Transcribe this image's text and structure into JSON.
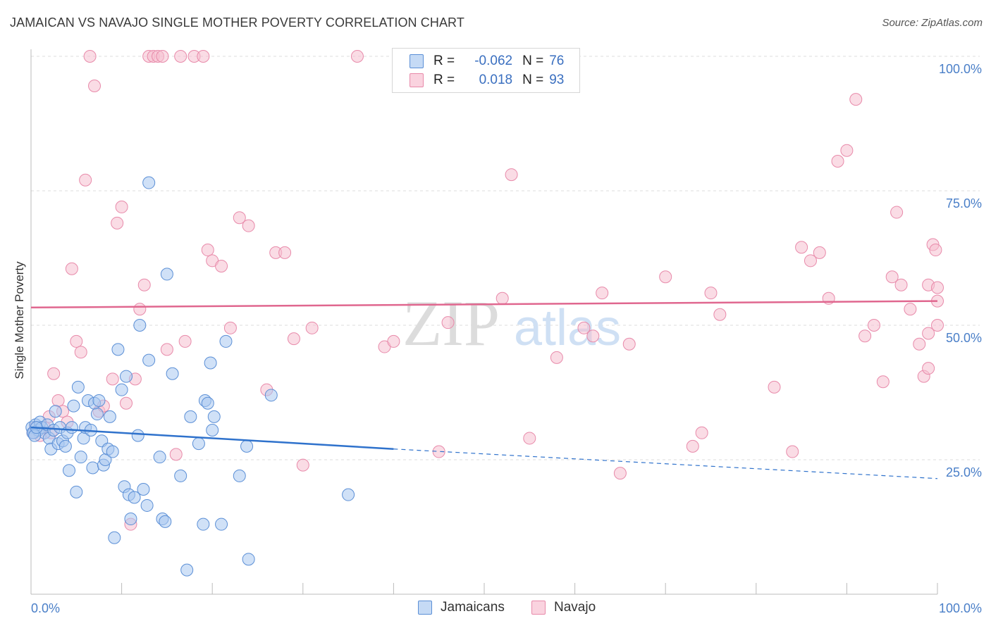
{
  "title": "JAMAICAN VS NAVAJO SINGLE MOTHER POVERTY CORRELATION CHART",
  "source": "Source: ZipAtlas.com",
  "watermark": {
    "zip": "ZIP",
    "atlas": "atlas"
  },
  "colors": {
    "blue_fill": "#a9c8f0",
    "blue_stroke": "#5b8fd6",
    "blue_line": "#2f72cc",
    "pink_fill": "#f5bfd0",
    "pink_stroke": "#e88aaa",
    "pink_line": "#e0678f",
    "tick_text": "#4a7fc8",
    "grid": "#dddddd"
  },
  "legend": {
    "rows": [
      {
        "r_label": "R =",
        "r_value": "-0.062",
        "n_label": "N =",
        "n_value": "76"
      },
      {
        "r_label": "R =",
        "r_value": "0.018",
        "n_label": "N =",
        "n_value": "93"
      }
    ]
  },
  "bottom_legend": {
    "jamaicans": "Jamaicans",
    "navajo": "Navajo"
  },
  "chart_data": {
    "type": "scatter",
    "title": "JAMAICAN VS NAVAJO SINGLE MOTHER POVERTY CORRELATION CHART",
    "ylabel": "Single Mother Poverty",
    "xlabel": "",
    "xlim": [
      0,
      100
    ],
    "ylim": [
      0,
      105
    ],
    "x_tick_labels": [
      "0.0%",
      "100.0%"
    ],
    "y_ticks": [
      {
        "value": 25,
        "label": "25.0%"
      },
      {
        "value": 50,
        "label": "50.0%"
      },
      {
        "value": 75,
        "label": "75.0%"
      },
      {
        "value": 100,
        "label": "100.0%"
      }
    ],
    "grid": true,
    "series": [
      {
        "name": "Jamaicans",
        "r": -0.062,
        "n": 76,
        "trend": {
          "solid": [
            [
              0,
              31.0
            ],
            [
              40,
              27.0
            ]
          ],
          "dashed": [
            [
              40,
              27.0
            ],
            [
              100,
              21.5
            ]
          ]
        },
        "points": [
          [
            0.1,
            31
          ],
          [
            0.3,
            30
          ],
          [
            0.5,
            31.5
          ],
          [
            0.8,
            30.5
          ],
          [
            1,
            32
          ],
          [
            1.2,
            31
          ],
          [
            1.5,
            30
          ],
          [
            1.8,
            31.5
          ],
          [
            2,
            29
          ],
          [
            2.2,
            27
          ],
          [
            2.5,
            30.5
          ],
          [
            2.7,
            34
          ],
          [
            3,
            28
          ],
          [
            3.2,
            31
          ],
          [
            3.5,
            28.5
          ],
          [
            3.8,
            27.5
          ],
          [
            4,
            30
          ],
          [
            4.2,
            23
          ],
          [
            4.5,
            31
          ],
          [
            4.7,
            35
          ],
          [
            5,
            19
          ],
          [
            5.2,
            38.5
          ],
          [
            5.5,
            25.5
          ],
          [
            5.8,
            29
          ],
          [
            6,
            31
          ],
          [
            6.3,
            36
          ],
          [
            6.6,
            30.5
          ],
          [
            6.8,
            23.5
          ],
          [
            7,
            35.5
          ],
          [
            7.3,
            33.5
          ],
          [
            7.5,
            36
          ],
          [
            7.8,
            28.5
          ],
          [
            8,
            24
          ],
          [
            8.2,
            25
          ],
          [
            8.5,
            27
          ],
          [
            8.7,
            33
          ],
          [
            9,
            26.5
          ],
          [
            9.2,
            10.5
          ],
          [
            9.6,
            45.5
          ],
          [
            10,
            38
          ],
          [
            10.3,
            20
          ],
          [
            10.5,
            40.5
          ],
          [
            10.8,
            18.5
          ],
          [
            11,
            14
          ],
          [
            11.4,
            18
          ],
          [
            11.8,
            29.5
          ],
          [
            12,
            50
          ],
          [
            12.4,
            19.5
          ],
          [
            12.8,
            16.5
          ],
          [
            13,
            43.5
          ],
          [
            13,
            76.5
          ],
          [
            14.2,
            25.5
          ],
          [
            14.5,
            14
          ],
          [
            14.8,
            13.5
          ],
          [
            15,
            59.5
          ],
          [
            15.6,
            41
          ],
          [
            16.5,
            22
          ],
          [
            17.2,
            4.5
          ],
          [
            17.6,
            33
          ],
          [
            18.5,
            28
          ],
          [
            19,
            13
          ],
          [
            19.2,
            36
          ],
          [
            19.5,
            35.5
          ],
          [
            19.8,
            43
          ],
          [
            20,
            30.5
          ],
          [
            20.2,
            33
          ],
          [
            21,
            13
          ],
          [
            21.5,
            47
          ],
          [
            23,
            22
          ],
          [
            23.8,
            27.5
          ],
          [
            24,
            6.5
          ],
          [
            26.5,
            37
          ],
          [
            35,
            18.5
          ],
          [
            0.2,
            30
          ],
          [
            0.4,
            29.5
          ],
          [
            0.6,
            31
          ]
        ]
      },
      {
        "name": "Navajo",
        "r": 0.018,
        "n": 93,
        "trend": {
          "solid": [
            [
              0,
              53.3
            ],
            [
              100,
              54.5
            ]
          ]
        },
        "points": [
          [
            0.2,
            30
          ],
          [
            0.5,
            31
          ],
          [
            1,
            29.5
          ],
          [
            1.5,
            31
          ],
          [
            2,
            33
          ],
          [
            2.2,
            30
          ],
          [
            2.5,
            41
          ],
          [
            3,
            36
          ],
          [
            3.5,
            34
          ],
          [
            4,
            32
          ],
          [
            4.5,
            60.5
          ],
          [
            5,
            47
          ],
          [
            5.5,
            45
          ],
          [
            6,
            77
          ],
          [
            6.5,
            100
          ],
          [
            7,
            94.5
          ],
          [
            7.5,
            34
          ],
          [
            8,
            35
          ],
          [
            9,
            40
          ],
          [
            9.5,
            69
          ],
          [
            10,
            72
          ],
          [
            10.5,
            35.5
          ],
          [
            11,
            13
          ],
          [
            11.5,
            40
          ],
          [
            12,
            53
          ],
          [
            12.5,
            57.5
          ],
          [
            13,
            100
          ],
          [
            13.5,
            100
          ],
          [
            14,
            100
          ],
          [
            14.5,
            100
          ],
          [
            15,
            45.5
          ],
          [
            16,
            26
          ],
          [
            16.5,
            100
          ],
          [
            17,
            47
          ],
          [
            18,
            100
          ],
          [
            19,
            100
          ],
          [
            19.5,
            64
          ],
          [
            20,
            62
          ],
          [
            21,
            61
          ],
          [
            22,
            49.5
          ],
          [
            23,
            70
          ],
          [
            24,
            68.5
          ],
          [
            26,
            38
          ],
          [
            27,
            63.5
          ],
          [
            28,
            63.5
          ],
          [
            29,
            47.5
          ],
          [
            30,
            24
          ],
          [
            31,
            49.5
          ],
          [
            36,
            100
          ],
          [
            39,
            46
          ],
          [
            40,
            47
          ],
          [
            45,
            26.5
          ],
          [
            46,
            50.5
          ],
          [
            52,
            55
          ],
          [
            53,
            78
          ],
          [
            55,
            29
          ],
          [
            58,
            44
          ],
          [
            61,
            49.5
          ],
          [
            62,
            48
          ],
          [
            63,
            56
          ],
          [
            65,
            22.5
          ],
          [
            66,
            46.5
          ],
          [
            70,
            59
          ],
          [
            73,
            27.5
          ],
          [
            74,
            30
          ],
          [
            75,
            56
          ],
          [
            76,
            52
          ],
          [
            82,
            38.5
          ],
          [
            84,
            26.5
          ],
          [
            85,
            64.5
          ],
          [
            86,
            62
          ],
          [
            87,
            63.5
          ],
          [
            88,
            55
          ],
          [
            89,
            80.5
          ],
          [
            90,
            82.5
          ],
          [
            91,
            92
          ],
          [
            92,
            48
          ],
          [
            93,
            50
          ],
          [
            94,
            39.5
          ],
          [
            95,
            59
          ],
          [
            95.5,
            71
          ],
          [
            96,
            57.5
          ],
          [
            97,
            53
          ],
          [
            98,
            46.5
          ],
          [
            98.5,
            40.5
          ],
          [
            99,
            57.5
          ],
          [
            99,
            48.5
          ],
          [
            99,
            42
          ],
          [
            99.5,
            65
          ],
          [
            99.8,
            64
          ],
          [
            100,
            50
          ],
          [
            100,
            57
          ],
          [
            100,
            54.5
          ]
        ]
      }
    ]
  }
}
